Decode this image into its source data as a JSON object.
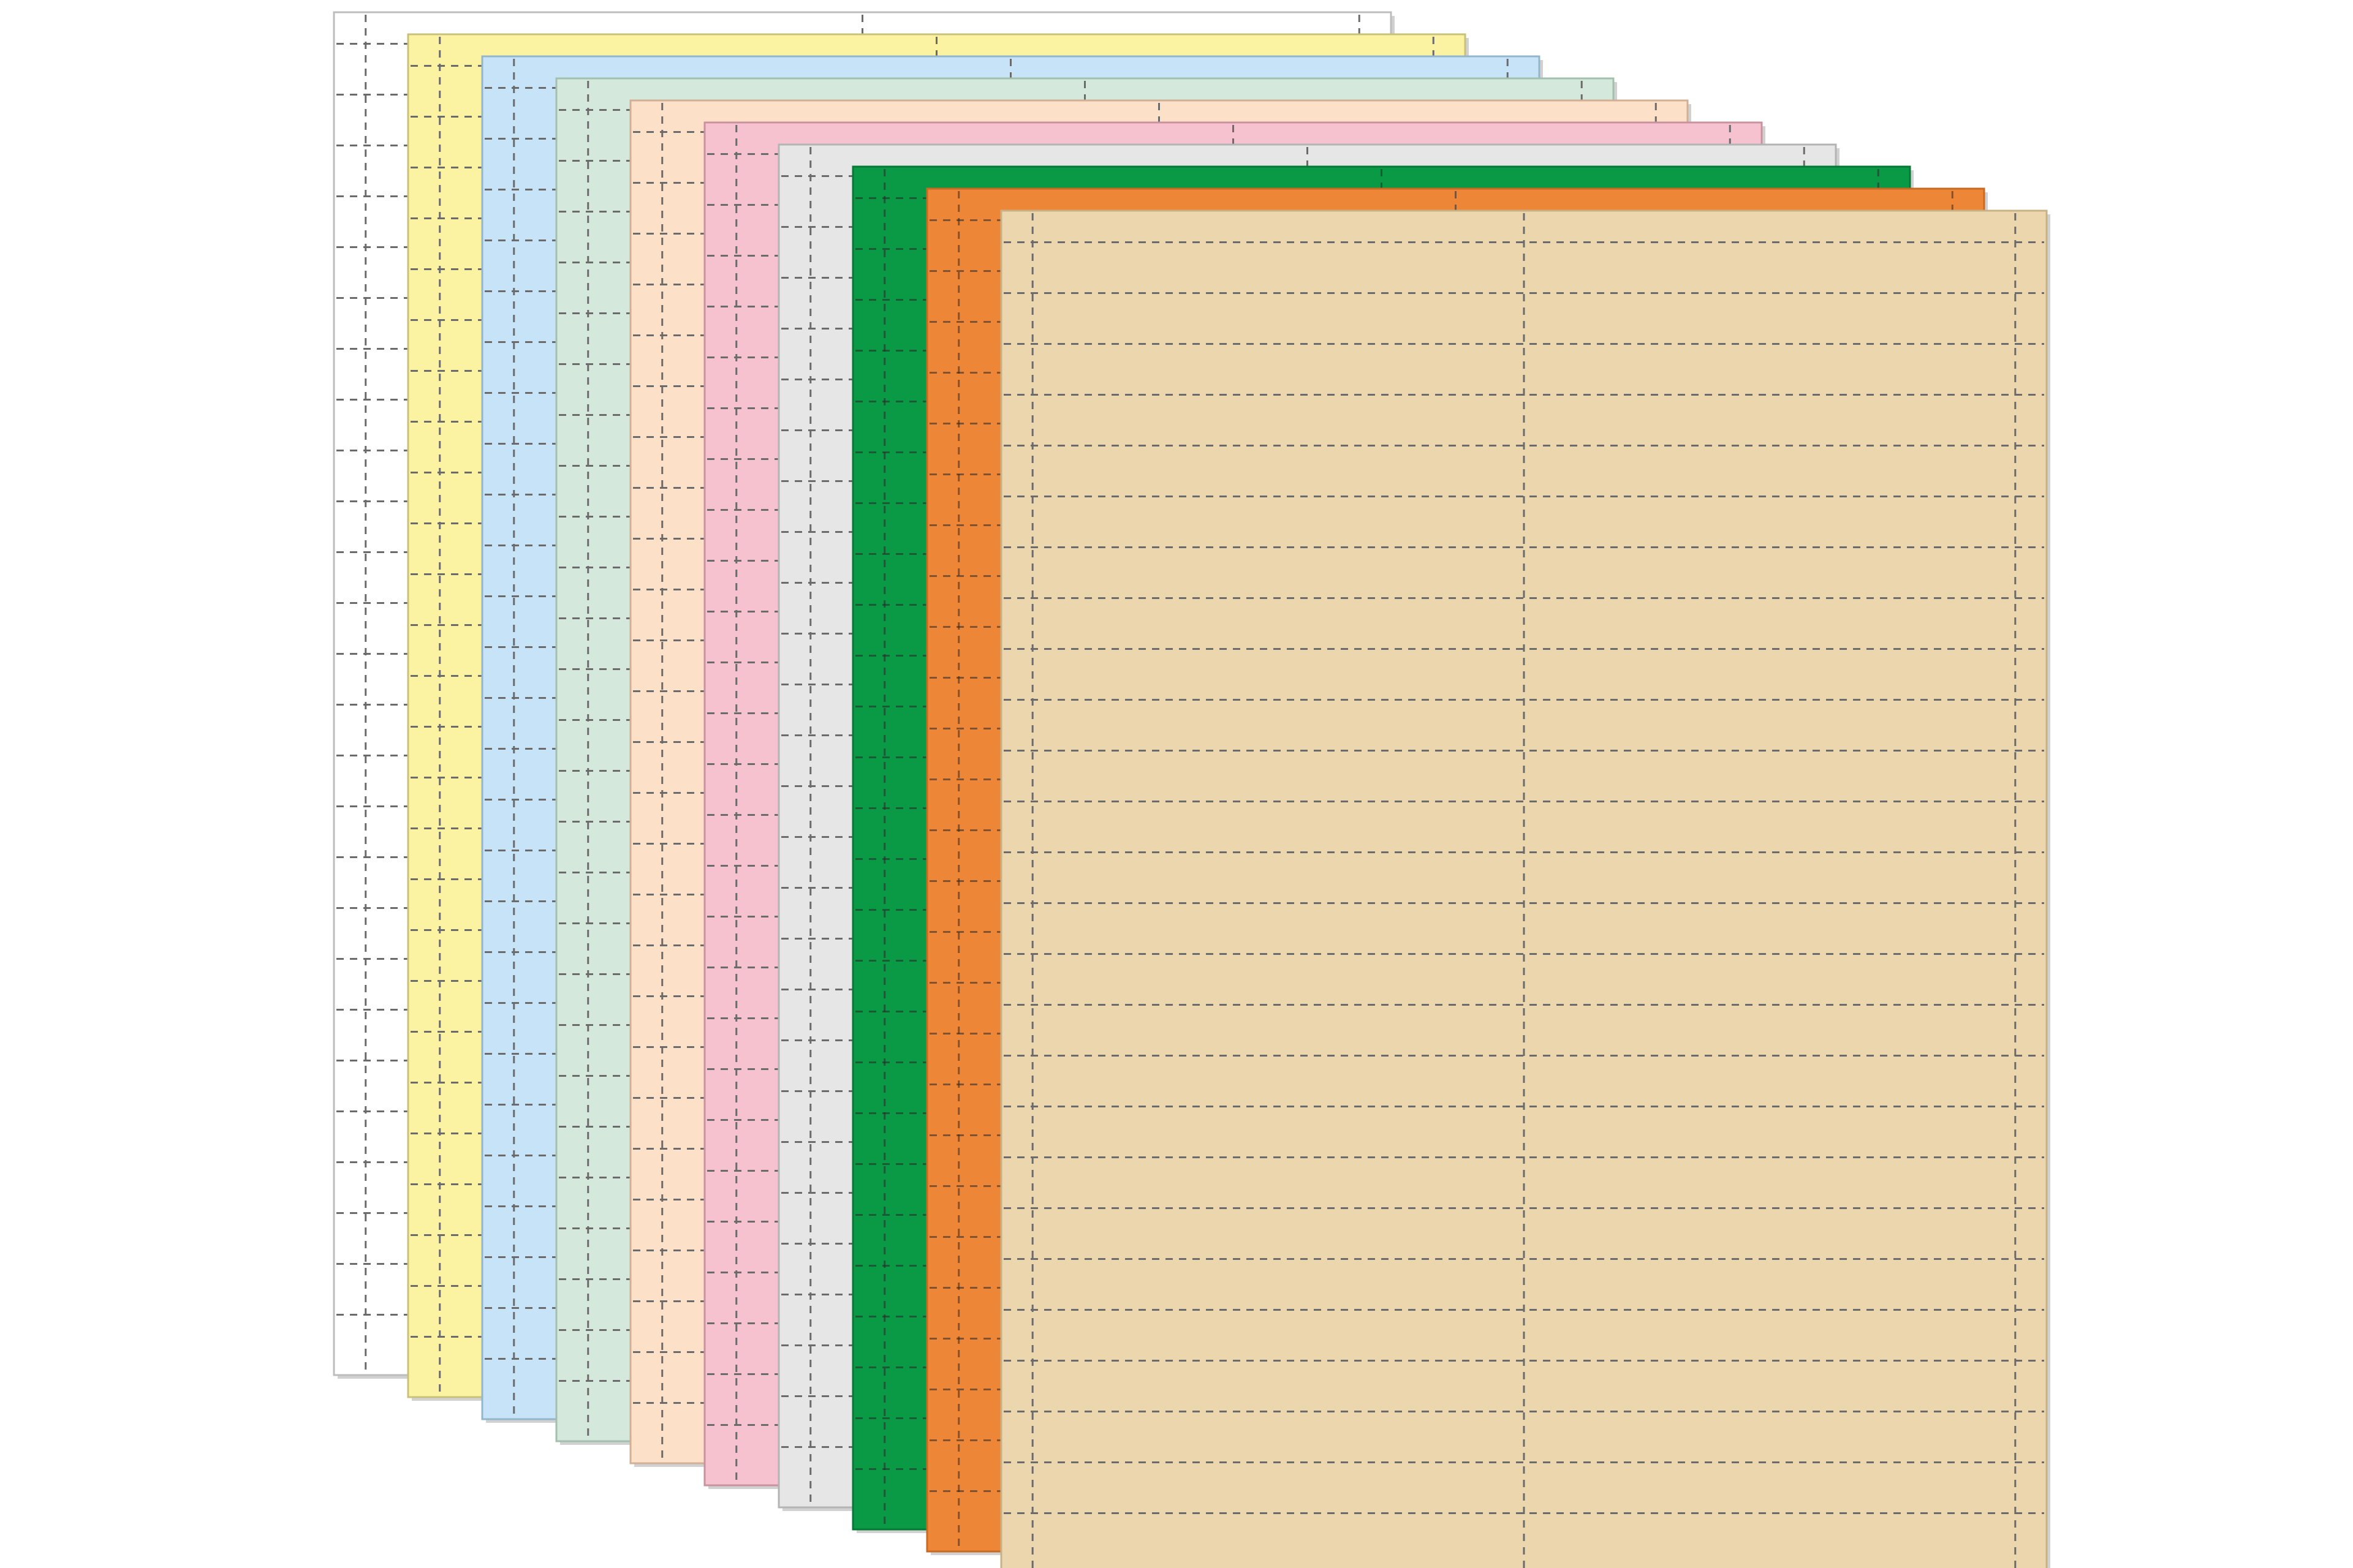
{
  "scene": {
    "subject": "stack-of-perforated-label-sheets",
    "background": "#ffffff",
    "perforation_color": "#6b6b6b",
    "sheets": [
      {
        "color_name": "white",
        "fill": "#ffffff",
        "edge": "#bdbdbd"
      },
      {
        "color_name": "pastel-yellow",
        "fill": "#fbf3a2",
        "edge": "#c9c07a"
      },
      {
        "color_name": "pastel-blue",
        "fill": "#c7e3f7",
        "edge": "#94b6cc"
      },
      {
        "color_name": "pastel-green",
        "fill": "#d4e8dc",
        "edge": "#a3bfae"
      },
      {
        "color_name": "pastel-peach",
        "fill": "#fde0c8",
        "edge": "#d1b096"
      },
      {
        "color_name": "pastel-pink",
        "fill": "#f6c2cf",
        "edge": "#c9929f"
      },
      {
        "color_name": "light-gray",
        "fill": "#e6e6e6",
        "edge": "#b4b4b4"
      },
      {
        "color_name": "green",
        "fill": "#0a9a45",
        "edge": "#067a34"
      },
      {
        "color_name": "orange",
        "fill": "#ee8638",
        "edge": "#c66a24"
      },
      {
        "color_name": "tan",
        "fill": "#ebd6ad",
        "edge": "#c8b186"
      }
    ]
  }
}
